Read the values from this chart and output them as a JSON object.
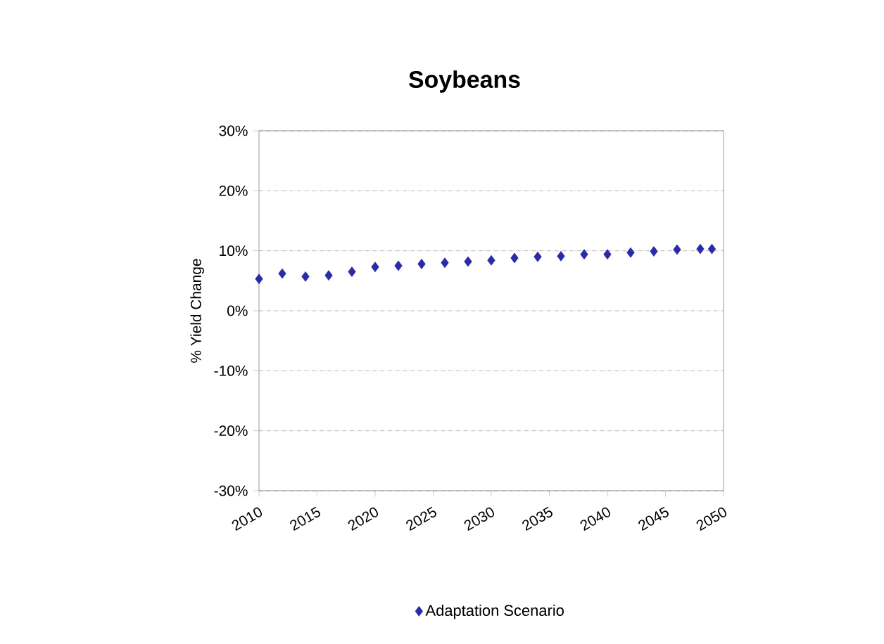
{
  "chart_data": {
    "type": "scatter",
    "title": "Soybeans",
    "ylabel": "% Yield Change",
    "x": [
      2010,
      2012,
      2014,
      2016,
      2018,
      2020,
      2022,
      2024,
      2026,
      2028,
      2030,
      2032,
      2034,
      2036,
      2038,
      2040,
      2042,
      2044,
      2046,
      2048,
      2049
    ],
    "series": [
      {
        "name": "Adaptation Scenario",
        "color": "#2b2ba8",
        "values": [
          5.3,
          6.2,
          5.7,
          5.9,
          6.5,
          7.3,
          7.5,
          7.8,
          8.0,
          8.2,
          8.4,
          8.8,
          9.0,
          9.1,
          9.4,
          9.4,
          9.7,
          9.9,
          10.2,
          10.3,
          10.3
        ]
      }
    ],
    "xlim": [
      2010,
      2050
    ],
    "xticks": [
      2010,
      2015,
      2020,
      2025,
      2030,
      2035,
      2040,
      2045,
      2050
    ],
    "ylim": [
      -30,
      30
    ],
    "yticks": [
      {
        "value": -30,
        "label": "-30%"
      },
      {
        "value": -20,
        "label": "-20%"
      },
      {
        "value": -10,
        "label": "-10%"
      },
      {
        "value": 0,
        "label": "0%"
      },
      {
        "value": 10,
        "label": "10%"
      },
      {
        "value": 20,
        "label": "20%"
      },
      {
        "value": 30,
        "label": "30%"
      }
    ],
    "grid": "y",
    "legend": "bottom",
    "marker": "diamond"
  }
}
